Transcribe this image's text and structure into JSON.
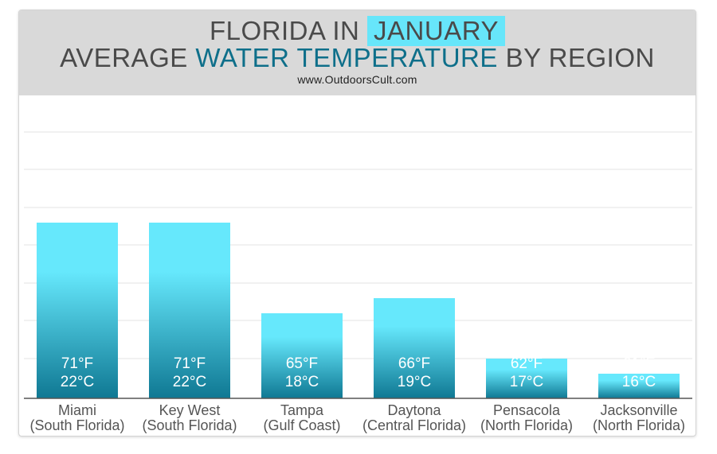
{
  "title": {
    "line1_prefix": "FLORIDA IN",
    "line1_highlight": "JANUARY",
    "line2_prefix": "AVERAGE",
    "line2_highlight": "WATER TEMPERATURE",
    "line2_suffix": "BY REGION"
  },
  "source": "www.OutdoorsCult.com",
  "colors": {
    "bar_top": "#66e8fc",
    "bar_bottom": "#0f7893",
    "highlight_bg": "#67e6fa",
    "highlight_text": "#0e6f8a",
    "header_bg": "#d9d9d9"
  },
  "chart_data": {
    "type": "bar",
    "title": "FLORIDA IN JANUARY AVERAGE WATER TEMPERATURE BY REGION",
    "grid": true,
    "categories": [
      {
        "name": "Miami",
        "region": "(South Florida)"
      },
      {
        "name": "Key West",
        "region": "(South Florida)"
      },
      {
        "name": "Tampa",
        "region": "(Gulf Coast)"
      },
      {
        "name": "Daytona",
        "region": "(Central Florida)"
      },
      {
        "name": "Pensacola",
        "region": "(North Florida)"
      },
      {
        "name": "Jacksonville",
        "region": "(North Florida)"
      }
    ],
    "values_f": [
      71,
      71,
      65,
      66,
      62,
      61
    ],
    "values_c": [
      22,
      22,
      18,
      19,
      17,
      16
    ],
    "labels_f": [
      "71°F",
      "71°F",
      "65°F",
      "66°F",
      "62°F",
      "61°F"
    ],
    "labels_c": [
      "22°C",
      "22°C",
      "18°C",
      "19°C",
      "17°C",
      "16°C"
    ]
  }
}
